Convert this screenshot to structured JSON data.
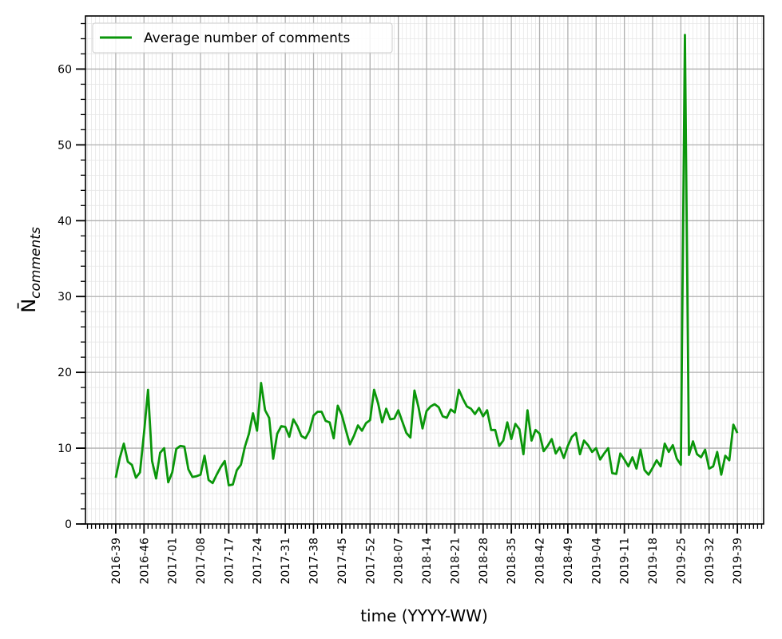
{
  "chart_data": {
    "type": "line",
    "title": "",
    "xlabel": "time (YYYY-WW)",
    "ylabel_main": "N̄",
    "ylabel_sub": "comments",
    "ylim": [
      0,
      67
    ],
    "yticks": [
      0,
      10,
      20,
      30,
      40,
      50,
      60
    ],
    "xlim": [
      -7.5,
      160.5
    ],
    "x_tick_labels": [
      "2016-39",
      "2016-46",
      "2017-01",
      "2017-08",
      "2017-17",
      "2017-24",
      "2017-31",
      "2017-38",
      "2017-45",
      "2017-52",
      "2018-07",
      "2018-14",
      "2018-21",
      "2018-28",
      "2018-35",
      "2018-42",
      "2018-49",
      "2019-04",
      "2019-11",
      "2019-18",
      "2019-25",
      "2019-32",
      "2019-39"
    ],
    "x_tick_step": 7,
    "grid": true,
    "legend_position": "top-left",
    "series": [
      {
        "name": "Average number of comments",
        "color": "#0a960a",
        "x_start": "2016-39",
        "values": [
          6.1,
          8.7,
          10.6,
          8.2,
          7.8,
          6.1,
          6.8,
          12.0,
          17.7,
          8.3,
          6.0,
          9.4,
          10.0,
          5.5,
          6.8,
          9.9,
          10.3,
          10.2,
          7.2,
          6.2,
          6.3,
          6.5,
          9.0,
          5.8,
          5.4,
          6.5,
          7.5,
          8.3,
          5.1,
          5.2,
          7.1,
          7.8,
          10.2,
          11.9,
          14.6,
          12.3,
          18.6,
          15.0,
          14.0,
          8.6,
          11.9,
          12.9,
          12.8,
          11.5,
          13.8,
          12.9,
          11.6,
          11.3,
          12.3,
          14.3,
          14.8,
          14.8,
          13.6,
          13.4,
          11.3,
          15.6,
          14.4,
          12.4,
          10.5,
          11.6,
          13.0,
          12.3,
          13.3,
          13.7,
          17.7,
          15.9,
          13.4,
          15.2,
          13.8,
          13.9,
          15.0,
          13.5,
          12.0,
          11.4,
          17.6,
          15.4,
          12.6,
          14.9,
          15.5,
          15.8,
          15.4,
          14.2,
          14.0,
          15.1,
          14.7,
          17.7,
          16.5,
          15.5,
          15.2,
          14.5,
          15.3,
          14.2,
          15.0,
          12.4,
          12.4,
          10.3,
          11.0,
          13.4,
          11.2,
          13.2,
          12.5,
          9.2,
          15.0,
          11.0,
          12.4,
          11.9,
          9.6,
          10.3,
          11.2,
          9.3,
          10.1,
          8.7,
          10.3,
          11.5,
          12.0,
          9.2,
          11.0,
          10.4,
          9.5,
          10.0,
          8.5,
          9.3,
          10.0,
          6.7,
          6.6,
          9.3,
          8.5,
          7.6,
          8.8,
          7.3,
          9.8,
          7.1,
          6.5,
          7.4,
          8.4,
          7.6,
          10.6,
          9.5,
          10.4,
          8.6,
          7.8,
          64.5,
          9.1,
          10.9,
          9.2,
          8.8,
          9.8,
          7.3,
          7.6,
          9.5,
          6.5,
          9.0,
          8.4,
          13.1,
          12.0
        ]
      }
    ]
  }
}
